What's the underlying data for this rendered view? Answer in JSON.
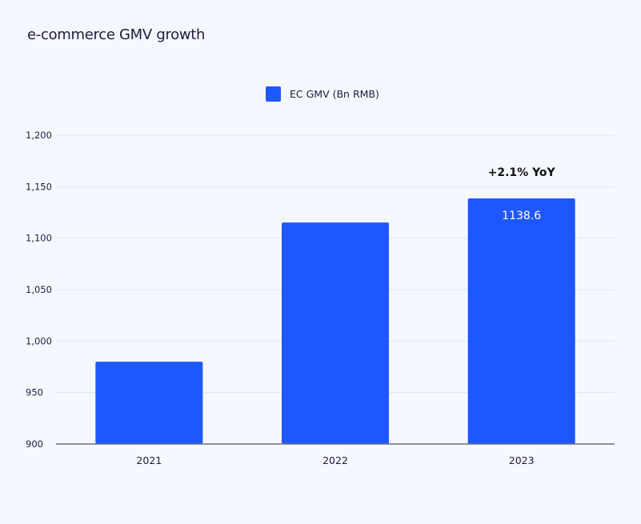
{
  "chart_data": {
    "type": "bar",
    "title": "e-commerce GMV growth",
    "legend": [
      "EC GMV (Bn RMB)"
    ],
    "legend_position": "top-center",
    "categories": [
      "2021",
      "2022",
      "2023"
    ],
    "values": [
      980,
      1115.2,
      1138.6
    ],
    "data_labels": {
      "2023": "1138.6"
    },
    "annotation": "+2.1% YoY",
    "ylim": [
      900,
      1200
    ],
    "yticks": [
      900,
      950,
      1000,
      1050,
      1100,
      1150,
      1200
    ],
    "ytick_labels": [
      "900",
      "950",
      "1,000",
      "1,050",
      "1,100",
      "1,150",
      "1,200"
    ],
    "grid": true,
    "xlabel": "",
    "ylabel": "",
    "bar_color": "#1f57ff"
  }
}
